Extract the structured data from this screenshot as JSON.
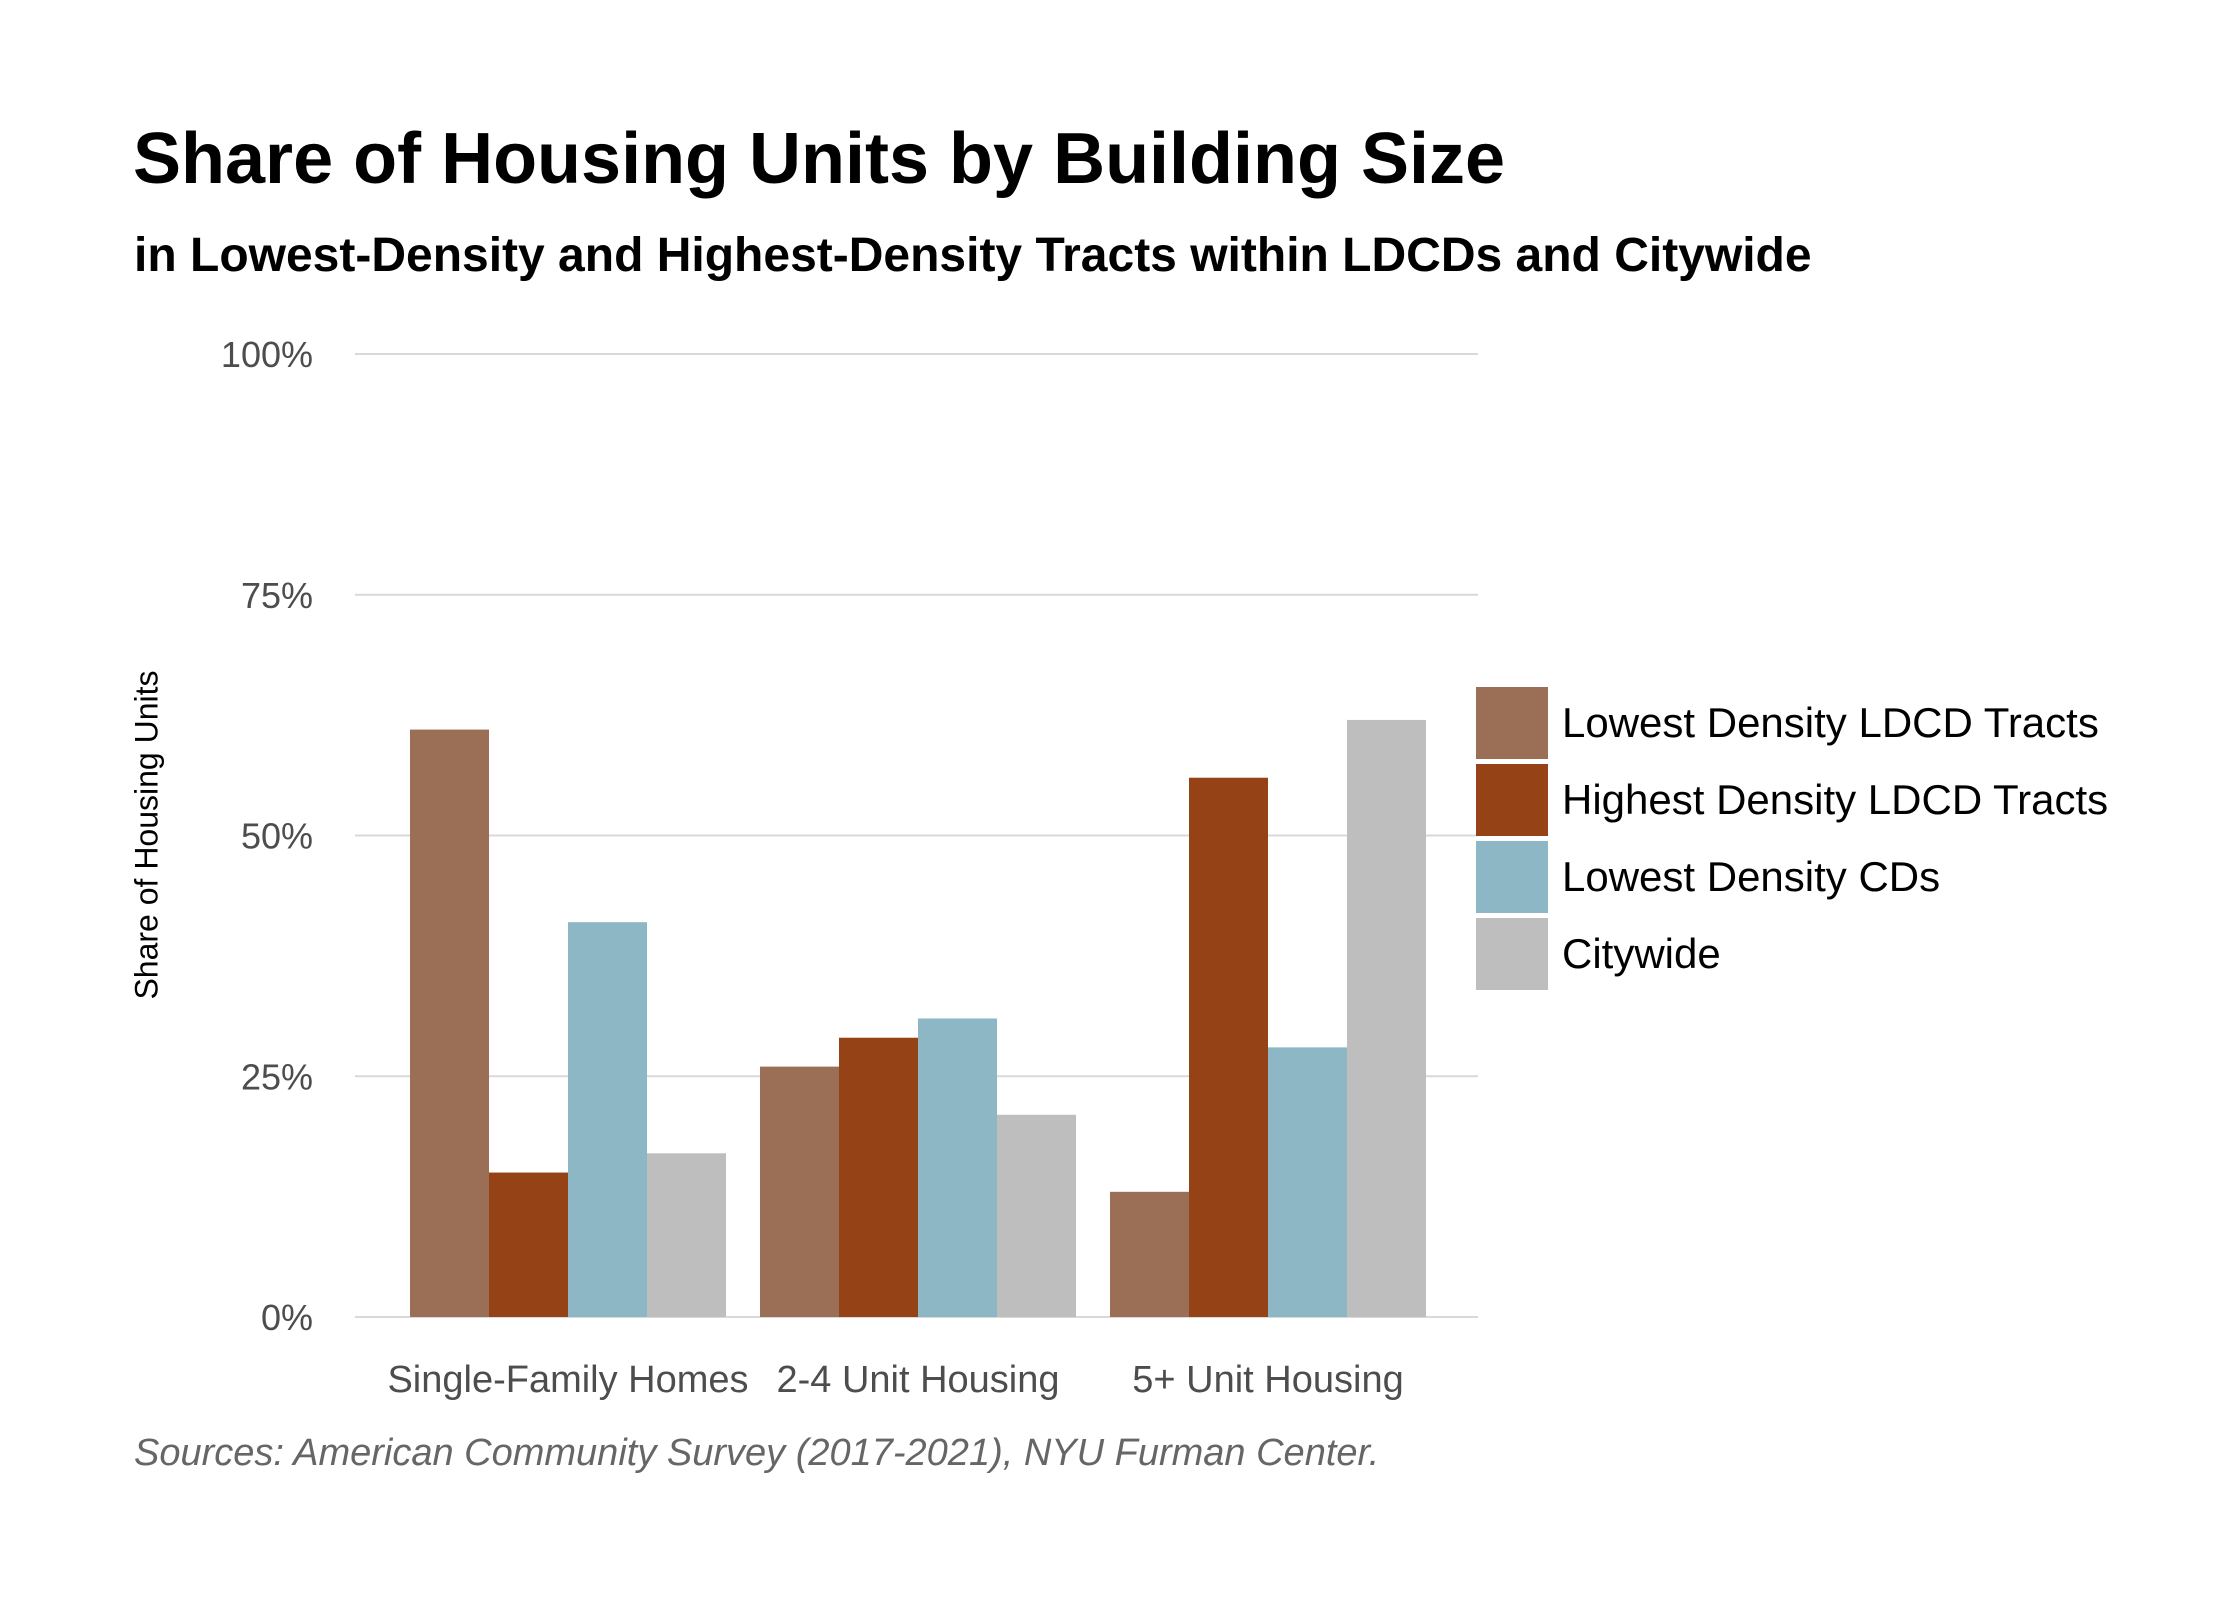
{
  "title": "Share of Housing Units by Building Size",
  "subtitle": "in Lowest-Density and Highest-Density Tracts within LDCDs and Citywide",
  "source": "Sources: American Community Survey (2017-2021), NYU Furman Center.",
  "chart_data": {
    "type": "bar",
    "title": "Share of Housing Units by Building Size",
    "subtitle": "in Lowest-Density and Highest-Density Tracts within LDCDs and Citywide",
    "xlabel": "",
    "ylabel": "Share of Housing Units",
    "ylim": [
      0,
      100
    ],
    "yticks": [
      {
        "value": 0,
        "label": "0%"
      },
      {
        "value": 25,
        "label": "25%"
      },
      {
        "value": 50,
        "label": "50%"
      },
      {
        "value": 75,
        "label": "75%"
      },
      {
        "value": 100,
        "label": "100%"
      }
    ],
    "grid": true,
    "legend_position": "right",
    "categories": [
      "Single-Family Homes",
      "2-4 Unit Housing",
      "5+ Unit Housing"
    ],
    "series": [
      {
        "name": "Lowest Density LDCD Tracts",
        "color": "#9b6f56",
        "values": [
          61,
          26,
          13
        ]
      },
      {
        "name": "Highest Density LDCD Tracts",
        "color": "#954216",
        "values": [
          15,
          29,
          56
        ]
      },
      {
        "name": "Lowest Density CDs",
        "color": "#8eb7c5",
        "values": [
          41,
          31,
          28
        ]
      },
      {
        "name": "Citywide",
        "color": "#bebebe",
        "values": [
          17,
          21,
          62
        ]
      }
    ]
  }
}
